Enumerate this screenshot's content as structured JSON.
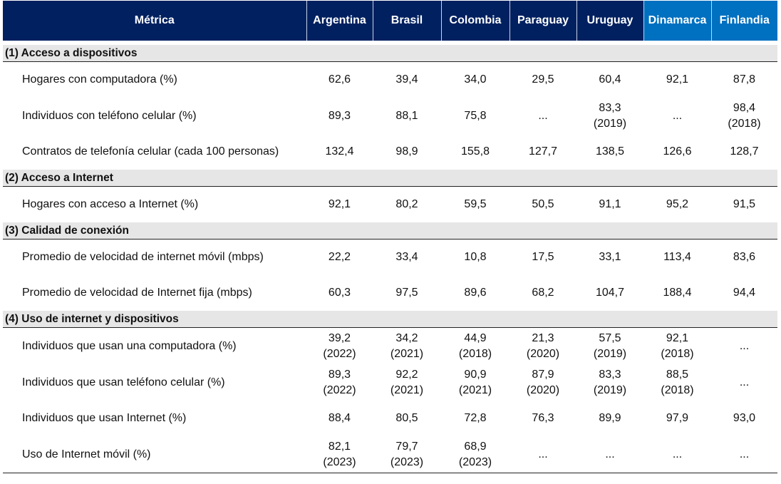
{
  "colors": {
    "header_navy": "#002060",
    "header_blue": "#0070c0",
    "section_bg": "#e6e6e6"
  },
  "header": {
    "metric": "Métrica",
    "countries": [
      "Argentina",
      "Brasil",
      "Colombia",
      "Paraguay",
      "Uruguay",
      "Dinamarca",
      "Finlandia"
    ]
  },
  "sections": [
    {
      "title": "(1) Acceso a dispositivos",
      "rows": [
        {
          "metric": "Hogares con computadora (%)",
          "values": [
            "62,6",
            "39,4",
            "34,0",
            "29,5",
            "60,4",
            "92,1",
            "87,8"
          ],
          "years": [
            "",
            "",
            "",
            "",
            "",
            "",
            ""
          ]
        },
        {
          "metric": "Individuos con teléfono celular (%)",
          "values": [
            "89,3",
            "88,1",
            "75,8",
            "...",
            "83,3",
            "...",
            "98,4"
          ],
          "years": [
            "",
            "",
            "",
            "",
            "(2019)",
            "",
            "(2018)"
          ]
        },
        {
          "metric": "Contratos de telefonía celular (cada 100 personas)",
          "values": [
            "132,4",
            "98,9",
            "155,8",
            "127,7",
            "138,5",
            "126,6",
            "128,7"
          ],
          "years": [
            "",
            "",
            "",
            "",
            "",
            "",
            ""
          ]
        }
      ]
    },
    {
      "title": "(2) Acceso a Internet",
      "rows": [
        {
          "metric": "Hogares con acceso a Internet (%)",
          "values": [
            "92,1",
            "80,2",
            "59,5",
            "50,5",
            "91,1",
            "95,2",
            "91,5"
          ],
          "years": [
            "",
            "",
            "",
            "",
            "",
            "",
            ""
          ]
        }
      ]
    },
    {
      "title": "(3) Calidad de conexión",
      "rows": [
        {
          "metric": "Promedio de velocidad de internet móvil (mbps)",
          "values": [
            "22,2",
            "33,4",
            "10,8",
            "17,5",
            "33,1",
            "113,4",
            "83,6"
          ],
          "years": [
            "",
            "",
            "",
            "",
            "",
            "",
            ""
          ]
        },
        {
          "metric": "Promedio de velocidad de Internet fija (mbps)",
          "values": [
            "60,3",
            "97,5",
            "89,6",
            "68,2",
            "104,7",
            "188,4",
            "94,4"
          ],
          "years": [
            "",
            "",
            "",
            "",
            "",
            "",
            ""
          ]
        }
      ]
    },
    {
      "title": "(4) Uso de internet y dispositivos",
      "rows": [
        {
          "metric": "Individuos que usan una computadora (%)",
          "values": [
            "39,2",
            "34,2",
            "44,9",
            "21,3",
            "57,5",
            "92,1",
            "..."
          ],
          "years": [
            "(2022)",
            "(2021)",
            "(2018)",
            "(2020)",
            "(2019)",
            "(2018)",
            ""
          ]
        },
        {
          "metric": "Individuos que usan teléfono celular (%)",
          "values": [
            "89,3",
            "92,2",
            "90,9",
            "87,9",
            "83,3",
            "88,5",
            "..."
          ],
          "years": [
            "(2022)",
            "(2021)",
            "(2021)",
            "(2020)",
            "(2019)",
            "(2018)",
            ""
          ]
        },
        {
          "metric": "Individuos que usan Internet (%)",
          "values": [
            "88,4",
            "80,5",
            "72,8",
            "76,3",
            "89,9",
            "97,9",
            "93,0"
          ],
          "years": [
            "",
            "",
            "",
            "",
            "",
            "",
            ""
          ]
        },
        {
          "metric": "Uso de Internet móvil (%)",
          "values": [
            "82,1",
            "79,7",
            "68,9",
            "...",
            "...",
            "...",
            "..."
          ],
          "years": [
            "(2023)",
            "(2023)",
            "(2023)",
            "",
            "",
            "",
            ""
          ]
        }
      ]
    }
  ]
}
